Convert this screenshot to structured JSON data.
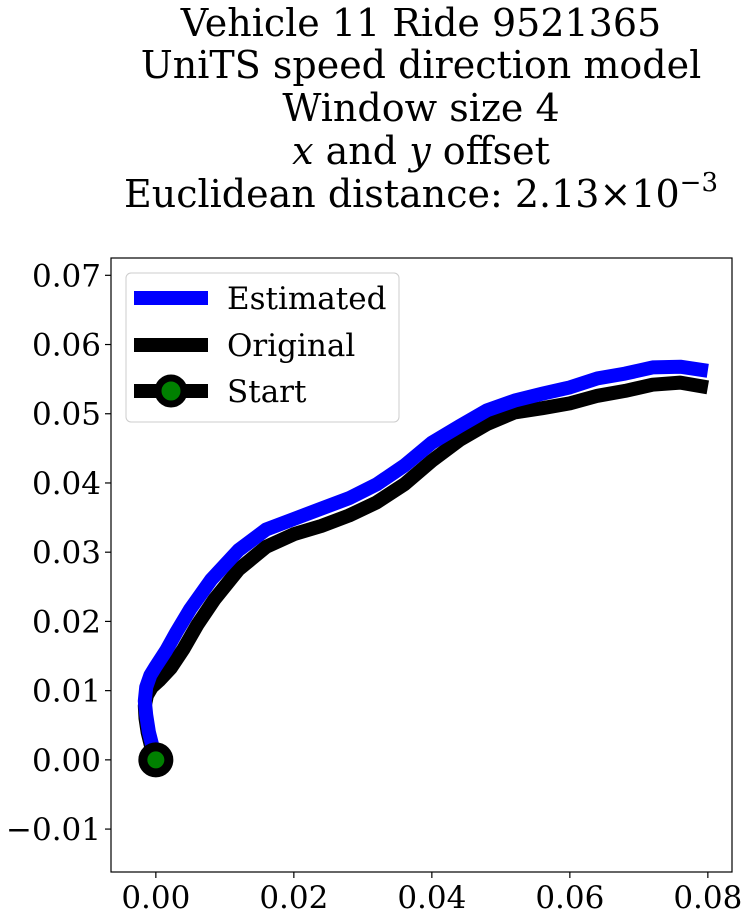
{
  "chart_data": {
    "type": "line",
    "title_lines": [
      "Vehicle 11 Ride 9521365",
      "UniTS speed direction model",
      "Window size 4"
    ],
    "title_offset": {
      "x_var": "x",
      "and": " and ",
      "y_var": "y",
      "rest": " offset"
    },
    "title_distance": {
      "prefix": "Euclidean distance: ",
      "mantissa": "2.13",
      "times": "×",
      "base": "10",
      "exponent": "−3"
    },
    "xlim": [
      -0.0065,
      0.0835
    ],
    "ylim": [
      -0.0162,
      0.0725
    ],
    "x_ticks": [
      0.0,
      0.02,
      0.04,
      0.06,
      0.08
    ],
    "x_tick_labels": [
      "0.00",
      "0.02",
      "0.04",
      "0.06",
      "0.08"
    ],
    "y_ticks": [
      -0.01,
      0.0,
      0.01,
      0.02,
      0.03,
      0.04,
      0.05,
      0.06,
      0.07
    ],
    "y_tick_labels": [
      "−0.01",
      "0.00",
      "0.01",
      "0.02",
      "0.03",
      "0.04",
      "0.05",
      "0.06",
      "0.07"
    ],
    "legend_position": "upper-left",
    "series": [
      {
        "name": "Estimated",
        "color": "#0000ff",
        "x": [
          0.0,
          -0.0005,
          -0.001,
          -0.0014,
          -0.0016,
          -0.0014,
          -0.0008,
          0.0,
          0.0015,
          0.003,
          0.005,
          0.008,
          0.012,
          0.016,
          0.02,
          0.024,
          0.028,
          0.032,
          0.036,
          0.04,
          0.044,
          0.048,
          0.052,
          0.056,
          0.06,
          0.064,
          0.068,
          0.072,
          0.076,
          0.08
        ],
        "y": [
          0.0,
          0.002,
          0.004,
          0.0065,
          0.0085,
          0.0105,
          0.0122,
          0.0135,
          0.0158,
          0.0185,
          0.0218,
          0.026,
          0.0303,
          0.0333,
          0.0348,
          0.0363,
          0.0378,
          0.0398,
          0.0425,
          0.0458,
          0.0482,
          0.0505,
          0.0519,
          0.0529,
          0.0538,
          0.0551,
          0.0558,
          0.0567,
          0.0568,
          0.0562
        ]
      },
      {
        "name": "Original",
        "color": "#000000",
        "x": [
          0.0,
          -0.0007,
          -0.0012,
          -0.0015,
          -0.0016,
          -0.0013,
          -0.0006,
          0.0005,
          0.0022,
          0.004,
          0.006,
          0.0085,
          0.012,
          0.016,
          0.02,
          0.024,
          0.028,
          0.032,
          0.036,
          0.04,
          0.044,
          0.048,
          0.052,
          0.056,
          0.06,
          0.064,
          0.068,
          0.072,
          0.076,
          0.08
        ],
        "y": [
          0.0,
          0.002,
          0.004,
          0.006,
          0.0078,
          0.0093,
          0.0105,
          0.0115,
          0.0133,
          0.016,
          0.0195,
          0.0232,
          0.0275,
          0.0308,
          0.0326,
          0.0338,
          0.0353,
          0.0372,
          0.0398,
          0.0432,
          0.0462,
          0.0485,
          0.0502,
          0.0508,
          0.0515,
          0.0526,
          0.0533,
          0.0542,
          0.0545,
          0.0538
        ]
      }
    ],
    "start_marker": {
      "name": "Start",
      "x": 0.0,
      "y": 0.0,
      "fill_color": "#008000",
      "edge_color": "#000000"
    }
  }
}
